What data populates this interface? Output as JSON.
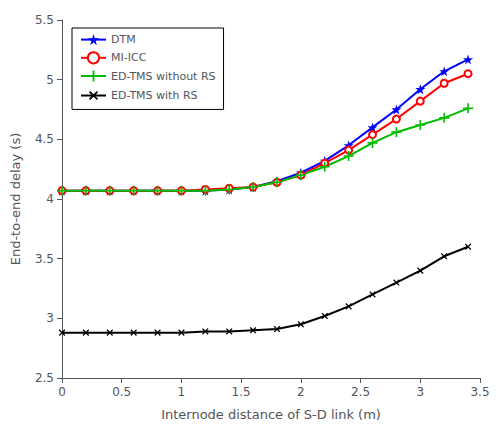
{
  "chart_data": {
    "type": "line",
    "xlabel": "Internode distance of S-D link (m)",
    "ylabel": "End-to-end delay (s)",
    "xlim": [
      0,
      3.5
    ],
    "ylim": [
      2.5,
      5.5
    ],
    "xticks": [
      0,
      0.5,
      1,
      1.5,
      2,
      2.5,
      3,
      3.5
    ],
    "yticks": [
      2.5,
      3,
      3.5,
      4,
      4.5,
      5,
      5.5
    ],
    "grid": false,
    "legend": "upper left",
    "x": [
      0,
      0.2,
      0.4,
      0.6,
      0.8,
      1.0,
      1.2,
      1.4,
      1.6,
      1.8,
      2.0,
      2.2,
      2.4,
      2.6,
      2.8,
      3.0,
      3.2,
      3.4
    ],
    "series": [
      {
        "name": "DTM",
        "color": "#0000ff",
        "marker": "star",
        "values": [
          4.07,
          4.07,
          4.07,
          4.07,
          4.07,
          4.07,
          4.07,
          4.08,
          4.1,
          4.15,
          4.22,
          4.32,
          4.45,
          4.6,
          4.75,
          4.92,
          5.07,
          5.17
        ]
      },
      {
        "name": "MI-ICC",
        "color": "#ff0000",
        "marker": "circle",
        "values": [
          4.07,
          4.07,
          4.07,
          4.07,
          4.07,
          4.07,
          4.08,
          4.09,
          4.1,
          4.14,
          4.2,
          4.3,
          4.41,
          4.54,
          4.67,
          4.82,
          4.97,
          5.05
        ]
      },
      {
        "name": "ED-TMS without RS",
        "color": "#00bb00",
        "marker": "plus",
        "values": [
          4.07,
          4.07,
          4.07,
          4.07,
          4.07,
          4.07,
          4.07,
          4.08,
          4.1,
          4.14,
          4.2,
          4.27,
          4.36,
          4.47,
          4.56,
          4.62,
          4.68,
          4.76
        ]
      },
      {
        "name": "ED-TMS with RS",
        "color": "#000000",
        "marker": "x",
        "values": [
          2.88,
          2.88,
          2.88,
          2.88,
          2.88,
          2.88,
          2.89,
          2.89,
          2.9,
          2.91,
          2.95,
          3.02,
          3.1,
          3.2,
          3.3,
          3.4,
          3.52,
          3.6
        ]
      }
    ]
  }
}
